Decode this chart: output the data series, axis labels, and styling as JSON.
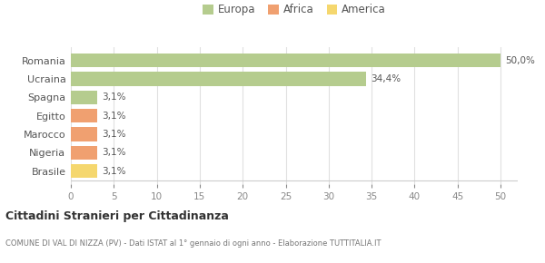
{
  "categories": [
    "Brasile",
    "Nigeria",
    "Marocco",
    "Egitto",
    "Spagna",
    "Ucraina",
    "Romania"
  ],
  "values": [
    3.1,
    3.1,
    3.1,
    3.1,
    3.1,
    34.4,
    50.0
  ],
  "labels": [
    "3,1%",
    "3,1%",
    "3,1%",
    "3,1%",
    "3,1%",
    "34,4%",
    "50,0%"
  ],
  "colors": [
    "#f5d76e",
    "#f0a070",
    "#f0a070",
    "#f0a070",
    "#b5cc8e",
    "#b5cc8e",
    "#b5cc8e"
  ],
  "legend_items": [
    {
      "label": "Europa",
      "color": "#b5cc8e"
    },
    {
      "label": "Africa",
      "color": "#f0a070"
    },
    {
      "label": "America",
      "color": "#f5d76e"
    }
  ],
  "title": "Cittadini Stranieri per Cittadinanza",
  "subtitle": "COMUNE DI VAL DI NIZZA (PV) - Dati ISTAT al 1° gennaio di ogni anno - Elaborazione TUTTITALIA.IT",
  "xlim": [
    0,
    52
  ],
  "xticks": [
    0,
    5,
    10,
    15,
    20,
    25,
    30,
    35,
    40,
    45,
    50
  ],
  "bg_color": "#ffffff",
  "grid_color": "#e0e0e0",
  "bar_height": 0.75
}
